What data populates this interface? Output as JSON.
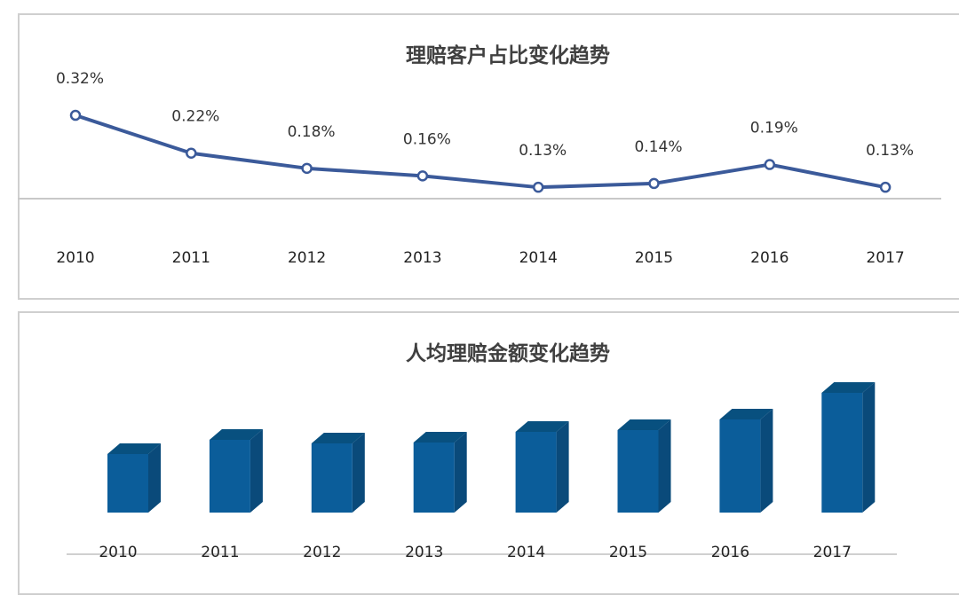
{
  "chart_data": [
    {
      "type": "line",
      "title": "理赔客户占比变化趋势",
      "categories": [
        "2010",
        "2011",
        "2012",
        "2013",
        "2014",
        "2015",
        "2016",
        "2017"
      ],
      "values": [
        0.32,
        0.22,
        0.18,
        0.16,
        0.13,
        0.14,
        0.19,
        0.13
      ],
      "data_labels": [
        "0.32%",
        "0.22%",
        "0.18%",
        "0.16%",
        "0.13%",
        "0.14%",
        "0.19%",
        "0.13%"
      ],
      "unit": "%",
      "ylim": [
        0.1,
        0.34
      ],
      "grid": false,
      "color": "#3b5a9a"
    },
    {
      "type": "bar",
      "title": "人均理赔金额变化趋势",
      "categories": [
        "2010",
        "2011",
        "2012",
        "2013",
        "2014",
        "2015",
        "2016",
        "2017"
      ],
      "values": [
        66,
        82,
        78,
        79,
        91,
        93,
        105,
        135
      ],
      "ylim": [
        0,
        140
      ],
      "grid": false,
      "style": "3d",
      "color": "#0b5d9a"
    }
  ]
}
